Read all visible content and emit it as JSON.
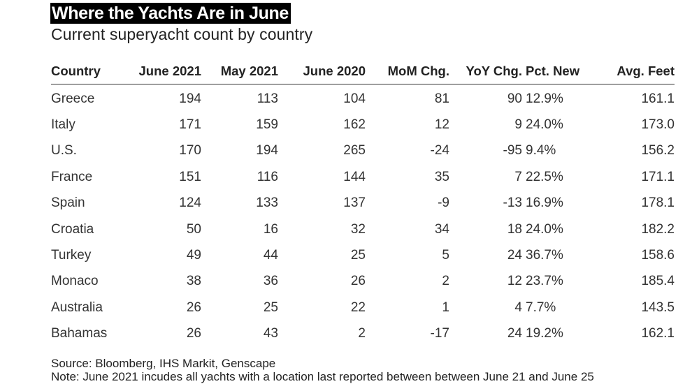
{
  "chart_data": {
    "type": "table",
    "title": "Where the Yachts Are in June",
    "subtitle": "Current superyacht count by country",
    "columns": [
      "Country",
      "June 2021",
      "May 2021",
      "June 2020",
      "MoM Chg.",
      "YoY Chg.",
      "Pct. New",
      "Avg. Feet"
    ],
    "rows": [
      [
        "Greece",
        "194",
        "113",
        "104",
        "81",
        "90",
        "12.9%",
        "161.1"
      ],
      [
        "Italy",
        "171",
        "159",
        "162",
        "12",
        "9",
        "24.0%",
        "173.0"
      ],
      [
        "U.S.",
        "170",
        "194",
        "265",
        "-24",
        "-95",
        "9.4%",
        "156.2"
      ],
      [
        "France",
        "151",
        "116",
        "144",
        "35",
        "7",
        "22.5%",
        "171.1"
      ],
      [
        "Spain",
        "124",
        "133",
        "137",
        "-9",
        "-13",
        "16.9%",
        "178.1"
      ],
      [
        "Croatia",
        "50",
        "16",
        "32",
        "34",
        "18",
        "24.0%",
        "182.2"
      ],
      [
        "Turkey",
        "49",
        "44",
        "25",
        "5",
        "24",
        "36.7%",
        "158.6"
      ],
      [
        "Monaco",
        "38",
        "36",
        "26",
        "2",
        "12",
        "23.7%",
        "185.4"
      ],
      [
        "Australia",
        "26",
        "25",
        "22",
        "1",
        "4",
        "7.7%",
        "143.5"
      ],
      [
        "Bahamas",
        "26",
        "43",
        "2",
        "-17",
        "24",
        "19.2%",
        "162.1"
      ]
    ],
    "source": "Source: Bloomberg, IHS Markit, Genscape",
    "note": "Note: June 2021 incudes all yachts with a location last reported between between June 21 and June 25"
  }
}
